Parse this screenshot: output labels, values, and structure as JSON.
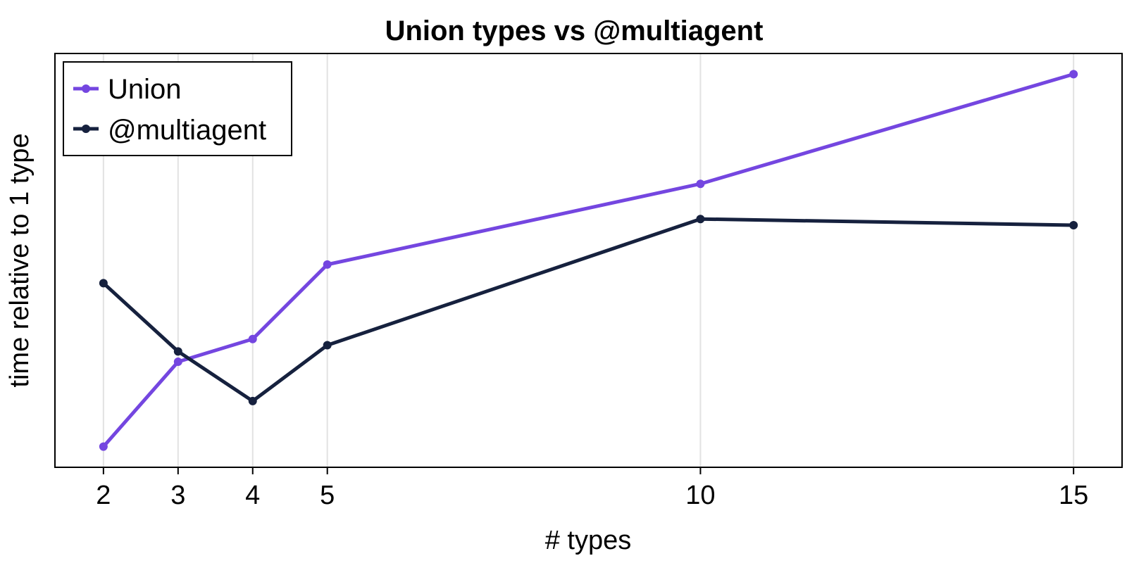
{
  "colors": {
    "union": "#7446e0",
    "multiagent": "#16213e",
    "grid": "#e2e2e2",
    "frame": "#000000"
  },
  "chart_data": {
    "type": "line",
    "title": "Union types vs @multiagent",
    "xlabel": "# types",
    "ylabel": "time relative to 1 type",
    "x": [
      2,
      3,
      4,
      5,
      10,
      15
    ],
    "x_ticks": [
      "2",
      "3",
      "4",
      "5",
      "10",
      "15"
    ],
    "xlim": [
      1.35,
      15.65
    ],
    "ylim": [
      0.0,
      1.0
    ],
    "y_ticks_shown": false,
    "grid": {
      "vertical": true,
      "horizontal": false
    },
    "legend_position": "top-left",
    "series": [
      {
        "name": "Union",
        "color": "#7446e0",
        "values": [
          0.05,
          0.255,
          0.31,
          0.49,
          0.685,
          0.95
        ]
      },
      {
        "name": "@multiagent",
        "color": "#16213e",
        "values": [
          0.445,
          0.28,
          0.16,
          0.295,
          0.6,
          0.585
        ]
      }
    ]
  }
}
